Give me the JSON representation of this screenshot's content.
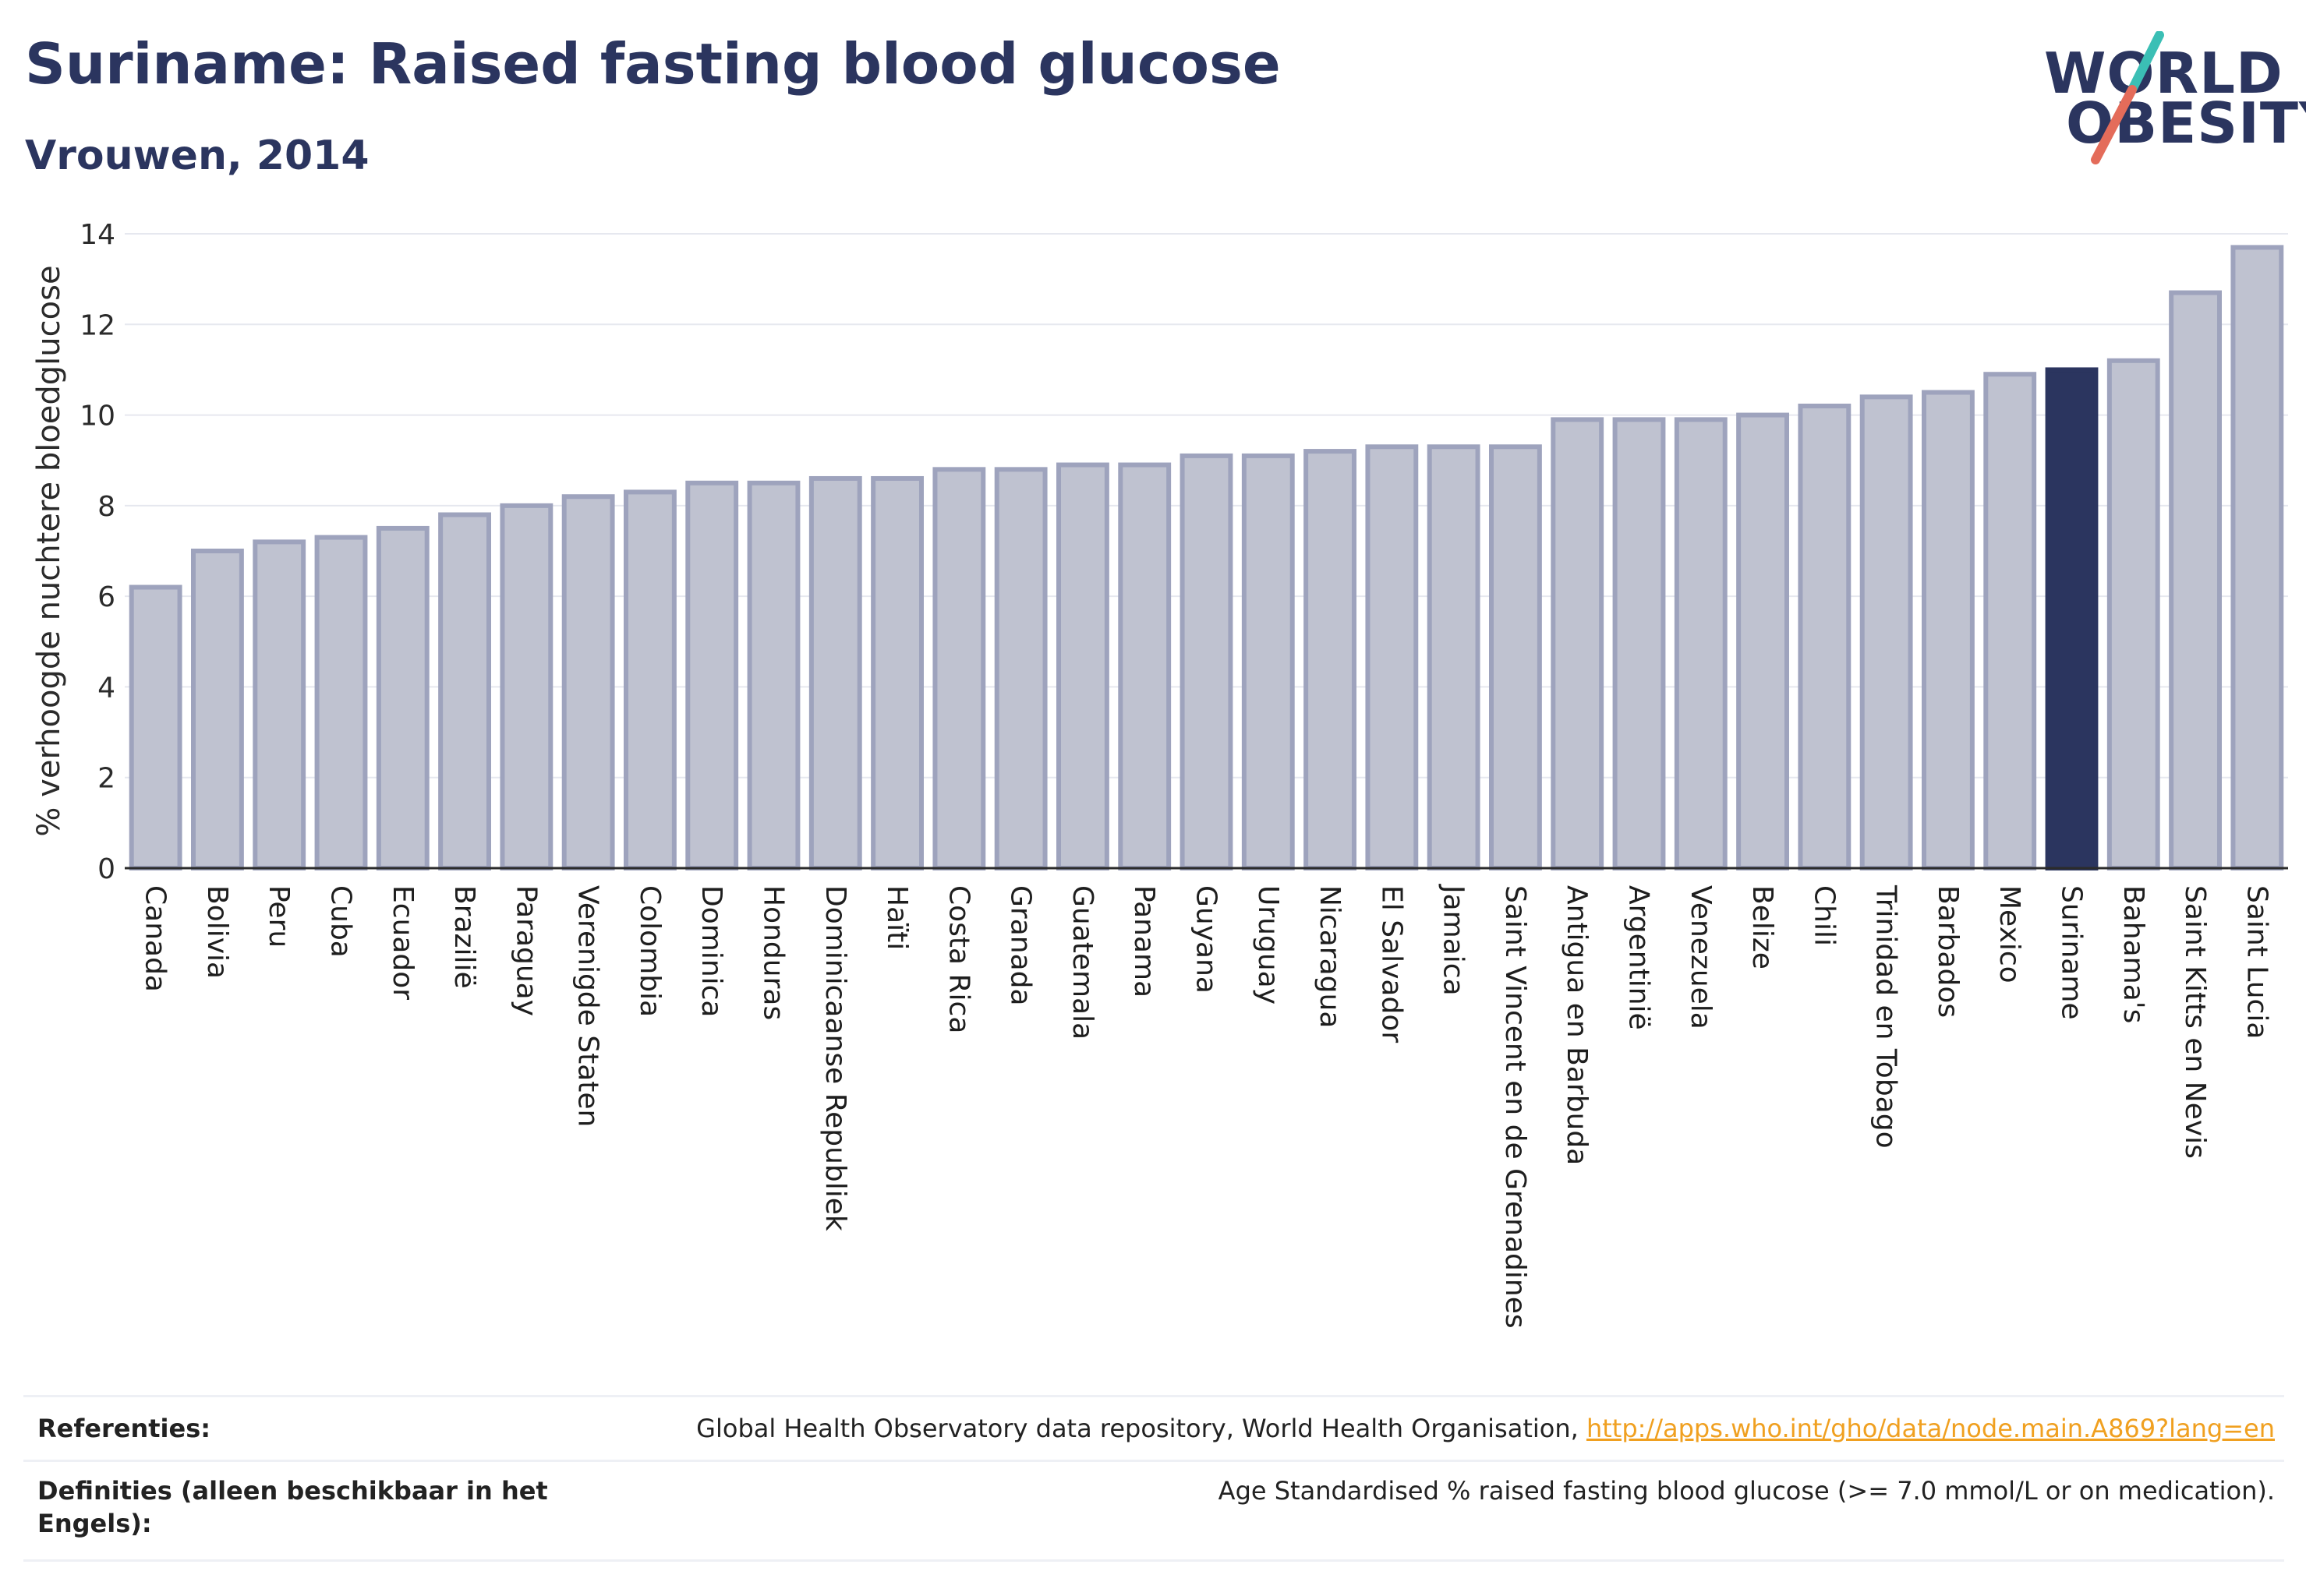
{
  "header": {
    "title": "Suriname: Raised fasting blood glucose",
    "subtitle": "Vrouwen, 2014"
  },
  "logo": {
    "line1": "WORLD",
    "line2": "OBESITY",
    "colors": {
      "text": "#2b355f",
      "slash_top": "#3bbfb5",
      "slash_bottom": "#e46c5a"
    }
  },
  "chart_data": {
    "type": "bar",
    "title": "",
    "xlabel": "",
    "ylabel": "% verhoogde nuchtere bloedglucose",
    "ylim": [
      0,
      14
    ],
    "yticks": [
      0,
      2,
      4,
      6,
      8,
      10,
      12,
      14
    ],
    "grid": true,
    "highlight": "Suriname",
    "colors": {
      "bar": "#bfc2d0",
      "bar_edge": "#9ea3bd",
      "highlight": "#2b355f"
    },
    "categories": [
      "Canada",
      "Bolivia",
      "Peru",
      "Cuba",
      "Ecuador",
      "Brazilië",
      "Paraguay",
      "Verenigde Staten",
      "Colombia",
      "Dominica",
      "Honduras",
      "Dominicaanse Republiek",
      "Haïti",
      "Costa Rica",
      "Granada",
      "Guatemala",
      "Panama",
      "Guyana",
      "Uruguay",
      "Nicaragua",
      "El Salvador",
      "Jamaica",
      "Saint Vincent en de Grenadines",
      "Antigua en Barbuda",
      "Argentinië",
      "Venezuela",
      "Belize",
      "Chili",
      "Trinidad en Tobago",
      "Barbados",
      "Mexico",
      "Suriname",
      "Bahama's",
      "Saint Kitts en Nevis",
      "Saint Lucia"
    ],
    "values": [
      6.2,
      7.0,
      7.2,
      7.3,
      7.5,
      7.8,
      8.0,
      8.2,
      8.3,
      8.5,
      8.5,
      8.6,
      8.6,
      8.8,
      8.8,
      8.9,
      8.9,
      9.1,
      9.1,
      9.2,
      9.3,
      9.3,
      9.3,
      9.9,
      9.9,
      9.9,
      10.0,
      10.2,
      10.4,
      10.5,
      10.9,
      11.0,
      11.2,
      12.7,
      13.7
    ]
  },
  "references": {
    "refs_label": "Referenties:",
    "refs_text": "Global Health Observatory data repository, World Health Organisation,",
    "refs_link": "http://apps.who.int/gho/data/node.main.A869?lang=en",
    "defs_label_line1": "Definities (alleen beschikbaar in het",
    "defs_label_line2": "Engels):",
    "defs_text": "Age Standardised % raised fasting blood glucose (>= 7.0 mmol/L or on medication)."
  }
}
